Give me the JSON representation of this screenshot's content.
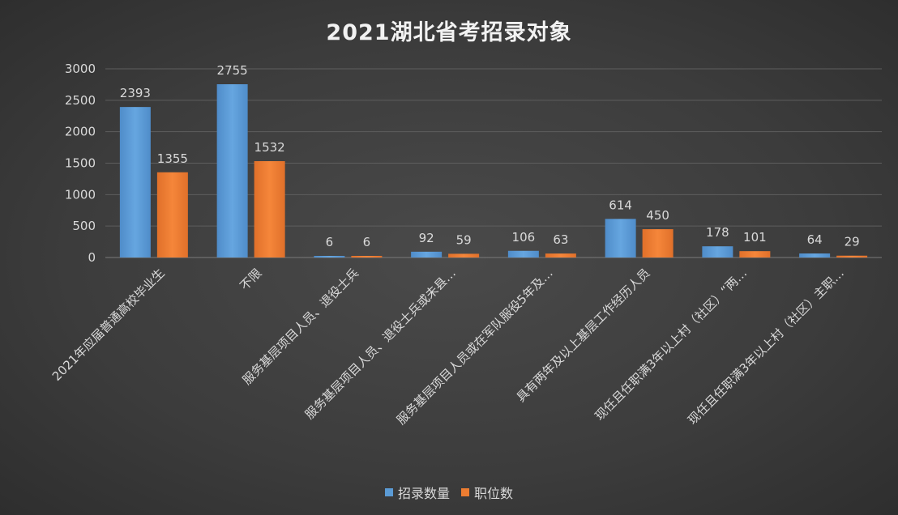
{
  "chart_data": {
    "type": "bar",
    "title": "2021湖北省考招录对象",
    "categories": [
      "2021年应届普通高校毕业生",
      "不限",
      "服务基层项目人员、退役士兵",
      "服务基层项目人员、退役士兵或未县…",
      "服务基层项目人员或在军队服役5年及…",
      "具有两年及以上基层工作经历人员",
      "现任且任职满3年以上村（社区）“两…",
      "现任且任职满3年以上村（社区）主职…"
    ],
    "series": [
      {
        "name": "招录数量",
        "color": "#5b9bd5",
        "values": [
          2393,
          2755,
          6,
          92,
          106,
          614,
          178,
          64
        ]
      },
      {
        "name": "职位数",
        "color": "#ed7d31",
        "values": [
          1355,
          1532,
          6,
          59,
          63,
          450,
          101,
          29
        ]
      }
    ],
    "ylim": [
      0,
      3000
    ],
    "yticks": [
      0,
      500,
      1000,
      1500,
      2000,
      2500,
      3000
    ],
    "grid": true,
    "legend_position": "bottom"
  }
}
